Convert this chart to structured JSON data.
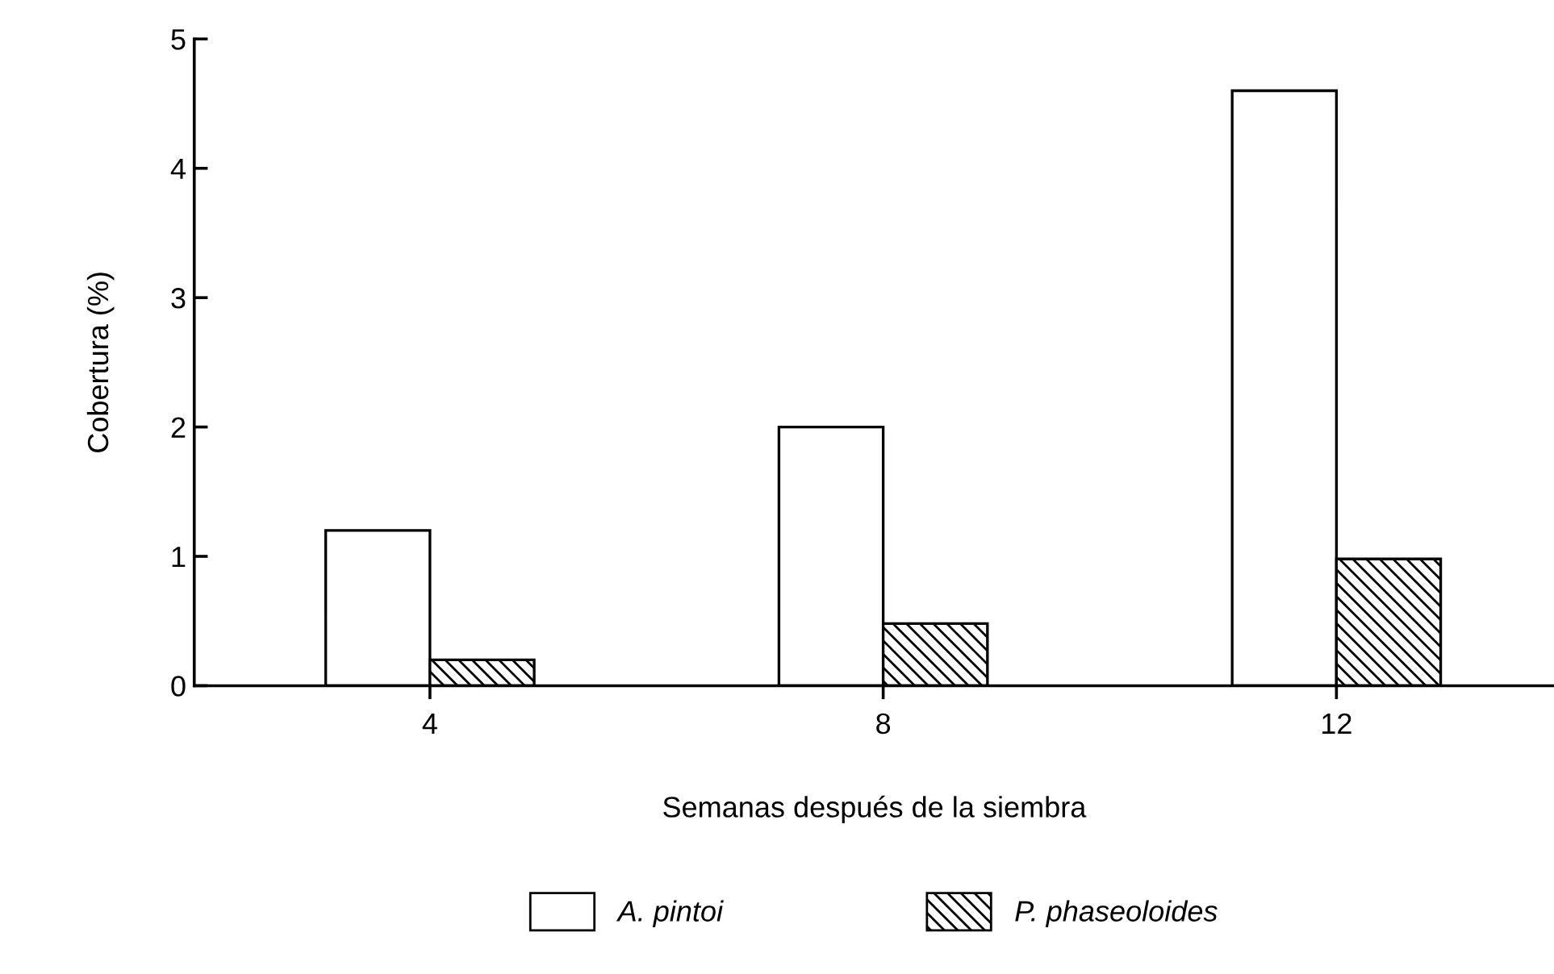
{
  "chart_data": {
    "type": "bar",
    "xlabel": "Semanas después de la siembra",
    "ylabel": "Cobertura (%)",
    "categories": [
      "4",
      "8",
      "12"
    ],
    "series": [
      {
        "name": "A. pintoi",
        "color": "#ffffff",
        "values": [
          1.2,
          2.0,
          4.6
        ]
      },
      {
        "name": "P. phaseoloides",
        "color": "#000000",
        "values": [
          0.2,
          0.48,
          0.98
        ]
      }
    ],
    "ylim": [
      0,
      5
    ],
    "yticks": [
      0,
      1,
      2,
      3,
      4,
      5
    ],
    "grid": false,
    "legend": "bottom"
  }
}
